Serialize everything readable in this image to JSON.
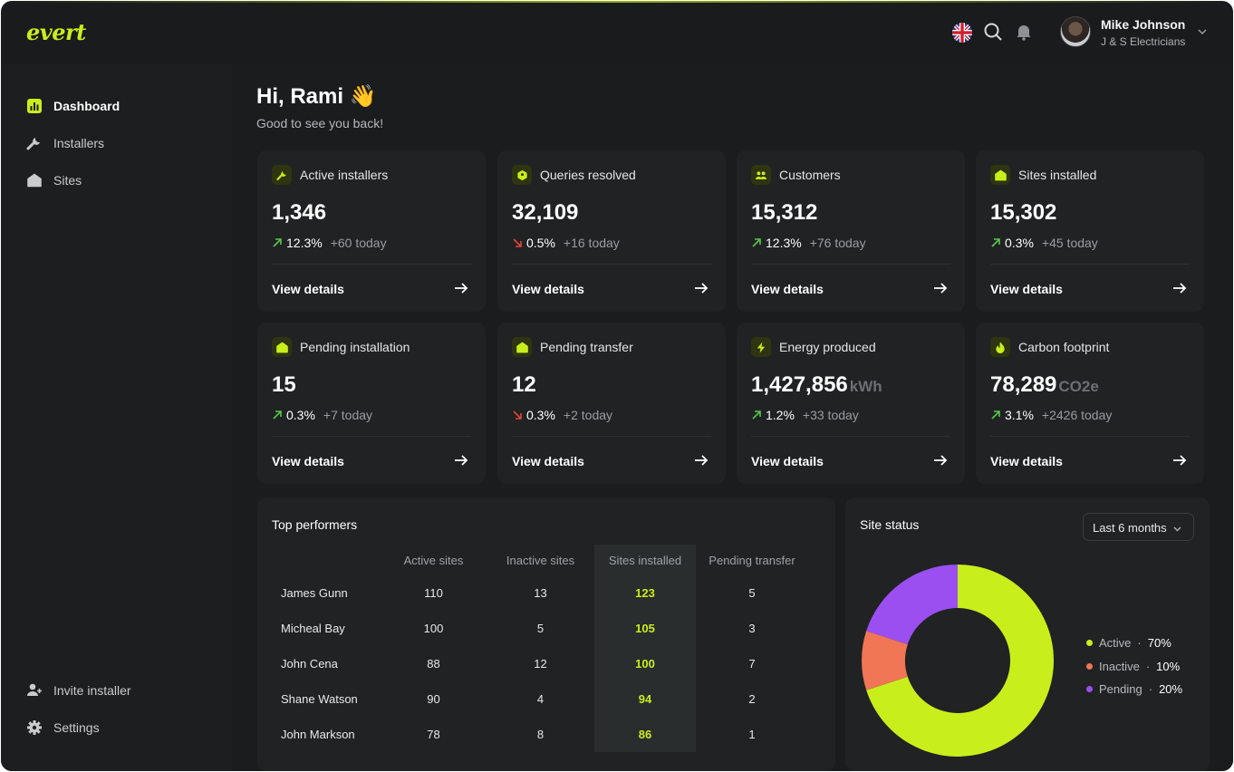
{
  "app": {
    "logo": "evert"
  },
  "header": {
    "user_name": "Mike Johnson",
    "user_company": "J & S Electricians"
  },
  "sidebar": {
    "items": [
      {
        "label": "Dashboard",
        "icon": "chart-bar-icon",
        "active": true
      },
      {
        "label": "Installers",
        "icon": "wrench-icon",
        "active": false
      },
      {
        "label": "Sites",
        "icon": "home-icon",
        "active": false
      }
    ],
    "bottom_items": [
      {
        "label": "Invite installer",
        "icon": "user-plus-icon"
      },
      {
        "label": "Settings",
        "icon": "gear-icon"
      }
    ]
  },
  "greeting": {
    "title": "Hi, Rami 👋",
    "subtitle": "Good to see you back!"
  },
  "cards": [
    {
      "title": "Active installers",
      "icon": "wrench-icon",
      "value": "1,346",
      "unit": "",
      "trend": "up",
      "pct": "12.3%",
      "today": "+60 today",
      "link": "View details"
    },
    {
      "title": "Queries resolved",
      "icon": "query-icon",
      "value": "32,109",
      "unit": "",
      "trend": "down",
      "pct": "0.5%",
      "today": "+16 today",
      "link": "View details"
    },
    {
      "title": "Customers",
      "icon": "users-icon",
      "value": "15,312",
      "unit": "",
      "trend": "up",
      "pct": "12.3%",
      "today": "+76 today",
      "link": "View details"
    },
    {
      "title": "Sites installed",
      "icon": "home-icon",
      "value": "15,302",
      "unit": "",
      "trend": "up",
      "pct": "0.3%",
      "today": "+45 today",
      "link": "View details"
    },
    {
      "title": "Pending installation",
      "icon": "home-icon",
      "value": "15",
      "unit": "",
      "trend": "up",
      "pct": "0.3%",
      "today": "+7 today",
      "link": "View details"
    },
    {
      "title": "Pending transfer",
      "icon": "home-icon",
      "value": "12",
      "unit": "",
      "trend": "down",
      "pct": "0.3%",
      "today": "+2 today",
      "link": "View details"
    },
    {
      "title": "Energy produced",
      "icon": "bolt-icon",
      "value": "1,427,856",
      "unit": "kWh",
      "trend": "up",
      "pct": "1.2%",
      "today": "+33 today",
      "link": "View details"
    },
    {
      "title": "Carbon footprint",
      "icon": "flame-icon",
      "value": "78,289",
      "unit": "CO2e",
      "trend": "up",
      "pct": "3.1%",
      "today": "+2426 today",
      "link": "View details"
    }
  ],
  "top_performers": {
    "title": "Top performers",
    "columns": [
      "Active sites",
      "Inactive sites",
      "Sites installed",
      "Pending transfer"
    ],
    "rows": [
      {
        "name": "James Gunn",
        "active": "110",
        "inactive": "13",
        "installed": "123",
        "pending": "5"
      },
      {
        "name": "Micheal Bay",
        "active": "100",
        "inactive": "5",
        "installed": "105",
        "pending": "3"
      },
      {
        "name": "John Cena",
        "active": "88",
        "inactive": "12",
        "installed": "100",
        "pending": "7"
      },
      {
        "name": "Shane Watson",
        "active": "90",
        "inactive": "4",
        "installed": "94",
        "pending": "2"
      },
      {
        "name": "John Markson",
        "active": "78",
        "inactive": "8",
        "installed": "86",
        "pending": "1"
      }
    ]
  },
  "site_status": {
    "title": "Site status",
    "range": "Last 6 months",
    "legend": [
      {
        "label": "Active",
        "value": "70%",
        "color": "#c8ee1c"
      },
      {
        "label": "Inactive",
        "value": "10%",
        "color": "#f07656"
      },
      {
        "label": "Pending",
        "value": "20%",
        "color": "#9b4ff0"
      }
    ]
  },
  "chart_data": {
    "type": "pie",
    "title": "Site status",
    "categories": [
      "Active",
      "Inactive",
      "Pending"
    ],
    "values": [
      70,
      10,
      20
    ],
    "colors": [
      "#c8ee1c",
      "#f07656",
      "#9b4ff0"
    ],
    "legend": "right"
  },
  "colors": {
    "accent": "#c8ee1c",
    "up": "#57c84a",
    "down": "#e2453a",
    "background": "#191b1c",
    "card": "#202223"
  }
}
